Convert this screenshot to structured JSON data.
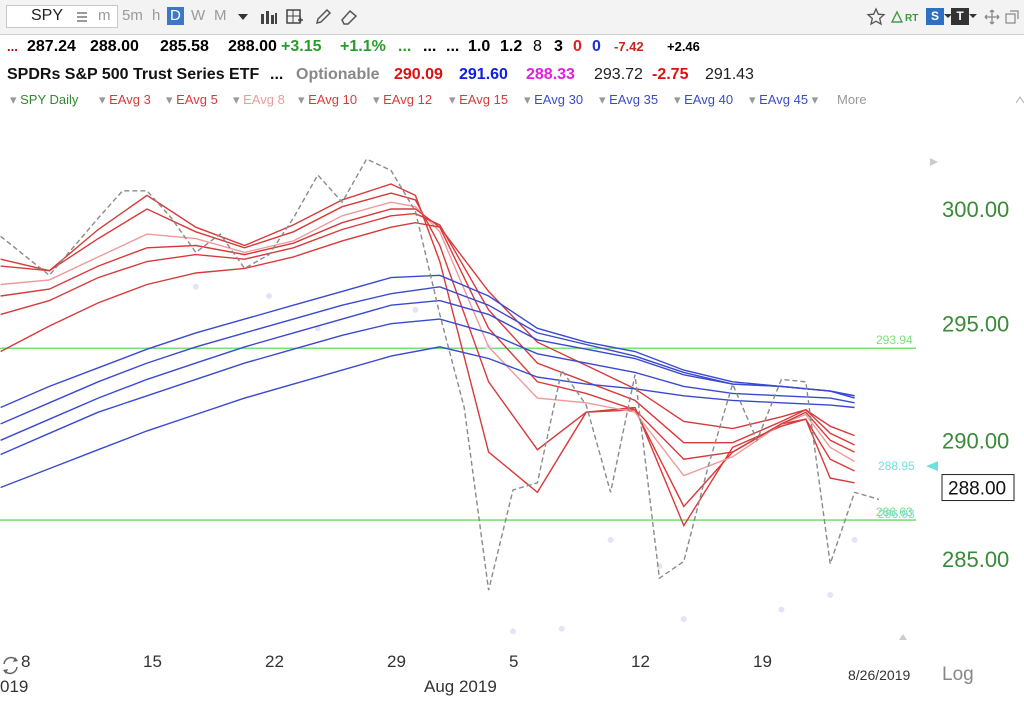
{
  "toolbar": {
    "symbol": "SPY",
    "intervals": [
      "m",
      "5m",
      "h",
      "D",
      "W",
      "M"
    ],
    "active_interval": "D",
    "rt_label": "RT",
    "badge_s": "S",
    "badge_t": "T"
  },
  "quote_row1": {
    "items": [
      {
        "text": "...",
        "color": "#c00000"
      },
      {
        "text": "287.24",
        "color": "#000000"
      },
      {
        "text": "288.00",
        "color": "#000000"
      },
      {
        "text": "285.58",
        "color": "#000000"
      },
      {
        "text": "288.00",
        "color": "#000000"
      },
      {
        "text": "+3.15",
        "color": "#2a9a2a"
      },
      {
        "text": "+1.1%",
        "color": "#2a9a2a"
      },
      {
        "text": "...",
        "color": "#2a9a2a"
      },
      {
        "text": "...",
        "color": "#000000"
      },
      {
        "text": "...",
        "color": "#000000"
      },
      {
        "text": "1.0",
        "color": "#000000"
      },
      {
        "text": "1.2",
        "color": "#000000"
      },
      {
        "text": "8",
        "color": "#000000"
      },
      {
        "text": "3",
        "color": "#000000"
      },
      {
        "text": "0",
        "color": "#e02020"
      },
      {
        "text": "0",
        "color": "#2030d0"
      },
      {
        "text": "-7.42",
        "color": "#d02020"
      },
      {
        "text": "+2.46",
        "color": "#000000"
      }
    ]
  },
  "quote_row2": {
    "name": "SPDRs S&P 500 Trust Series ETF",
    "dots": "...",
    "optionable": "Optionable",
    "values": [
      {
        "text": "290.09",
        "color": "#e01010"
      },
      {
        "text": "291.60",
        "color": "#1020e0"
      },
      {
        "text": "288.33",
        "color": "#e020e0"
      },
      {
        "text": "293.72",
        "color": "#222222"
      },
      {
        "text": "-2.75",
        "color": "#e01010"
      },
      {
        "text": "291.43",
        "color": "#222222"
      }
    ]
  },
  "legend": {
    "items": [
      {
        "text": "SPY Daily",
        "color": "#2e8b2e"
      },
      {
        "text": "EAvg 3",
        "color": "#d83a3a"
      },
      {
        "text": "EAvg 5",
        "color": "#d83a3a"
      },
      {
        "text": "EAvg 8",
        "color": "#ef9a9a"
      },
      {
        "text": "EAvg 10",
        "color": "#d83a3a"
      },
      {
        "text": "EAvg 12",
        "color": "#d83a3a"
      },
      {
        "text": "EAvg 15",
        "color": "#d83a3a"
      },
      {
        "text": "EAvg 30",
        "color": "#3a4ad0"
      },
      {
        "text": "EAvg 35",
        "color": "#3a4ad0"
      },
      {
        "text": "EAvg 40",
        "color": "#3a4ad0"
      },
      {
        "text": "EAvg 45",
        "color": "#3a4ad0"
      }
    ],
    "more": "More"
  },
  "chart_data": {
    "type": "line",
    "y_scale": "log",
    "ylim": [
      282,
      304
    ],
    "y_ticks": [
      {
        "value": 300,
        "label": "300.00"
      },
      {
        "value": 295,
        "label": "295.00"
      },
      {
        "value": 290,
        "label": "290.00"
      },
      {
        "value": 285,
        "label": "285.00"
      }
    ],
    "x_ticks": [
      {
        "index": 0,
        "label": "8"
      },
      {
        "index": 5,
        "label": "15"
      },
      {
        "index": 10,
        "label": "22"
      },
      {
        "index": 15,
        "label": "29"
      },
      {
        "index": 20,
        "label": "5"
      },
      {
        "index": 25,
        "label": "12"
      },
      {
        "index": 30,
        "label": "19"
      }
    ],
    "x_labels_below": [
      {
        "index": 0,
        "label": "019"
      },
      {
        "index": 18,
        "label": "Aug 2019"
      }
    ],
    "date_readout": "8/26/2019",
    "scale_label": "Log",
    "last_price_label": "288.00",
    "h_lines": [
      {
        "value": 293.94,
        "label": "293.94",
        "color": "#7be07b"
      },
      {
        "value": 286.63,
        "label": "286.63",
        "color": "#7be07b"
      }
    ],
    "right_markers": [
      {
        "value": 288.95,
        "label": "288.95",
        "color": "#6fe0e0"
      },
      {
        "value": 286.93,
        "label": "286.93",
        "color": "#6fe0e0"
      }
    ],
    "price_line": {
      "color": "#8a8a8a",
      "x": [
        -1,
        1,
        3,
        4,
        5,
        6,
        7,
        8,
        9,
        10,
        11,
        12,
        13,
        14,
        15,
        16,
        17,
        18,
        19,
        20,
        21,
        22,
        23,
        24,
        25,
        26,
        27,
        28,
        29,
        30,
        31,
        32,
        33,
        34,
        35
      ],
      "values": [
        298.8,
        297.1,
        299.6,
        300.8,
        300.8,
        299.6,
        298.1,
        298.9,
        297.4,
        298.0,
        299.6,
        301.5,
        300.3,
        302.2,
        301.7,
        299.9,
        295.4,
        291.4,
        283.7,
        287.9,
        288.2,
        293.0,
        291.5,
        287.8,
        292.8,
        284.2,
        284.9,
        288.9,
        292.4,
        290.0,
        292.6,
        292.5,
        284.8,
        287.8,
        287.5
      ]
    },
    "series": [
      {
        "color": "#d83a3a",
        "x": [
          -1,
          1,
          3,
          5,
          7,
          9,
          11,
          13,
          15,
          16,
          17,
          19,
          21,
          23,
          25,
          27,
          29,
          31,
          32,
          33,
          34
        ],
        "values": [
          297.8,
          297.3,
          299.1,
          300.6,
          299.2,
          298.4,
          299.3,
          300.4,
          301.1,
          300.6,
          297.7,
          289.5,
          287.8,
          291.2,
          291.4,
          286.4,
          289.7,
          290.6,
          290.9,
          288.4,
          288.2
        ]
      },
      {
        "color": "#d83a3a",
        "x": [
          -1,
          1,
          3,
          5,
          7,
          9,
          11,
          13,
          15,
          16,
          17,
          19,
          21,
          23,
          25,
          27,
          29,
          31,
          32,
          33,
          34
        ],
        "values": [
          297.5,
          297.3,
          298.7,
          300.0,
          299.0,
          298.3,
          299.0,
          300.1,
          300.7,
          300.4,
          298.4,
          292.5,
          289.6,
          291.2,
          291.3,
          287.2,
          289.5,
          290.7,
          290.9,
          289.2,
          288.7
        ]
      },
      {
        "color": "#ef9a9a",
        "x": [
          -1,
          1,
          3,
          5,
          7,
          9,
          11,
          13,
          15,
          16,
          17,
          19,
          21,
          23,
          25,
          27,
          29,
          31,
          32,
          33,
          34
        ],
        "values": [
          296.7,
          296.9,
          297.9,
          298.9,
          298.7,
          298.1,
          298.6,
          299.7,
          300.3,
          300.1,
          299.0,
          294.0,
          291.8,
          291.6,
          291.2,
          288.5,
          289.3,
          290.7,
          291.1,
          289.7,
          289.1
        ]
      },
      {
        "color": "#d83a3a",
        "x": [
          -1,
          1,
          3,
          5,
          7,
          9,
          11,
          13,
          15,
          16,
          17,
          19,
          21,
          23,
          25,
          27,
          29,
          31,
          32,
          33,
          34
        ],
        "values": [
          296.2,
          296.5,
          297.5,
          298.3,
          298.4,
          298.0,
          298.5,
          299.4,
          300.0,
          300.0,
          299.2,
          294.8,
          292.5,
          292.0,
          291.3,
          289.2,
          289.5,
          290.7,
          291.2,
          290.0,
          289.5
        ]
      },
      {
        "color": "#d83a3a",
        "x": [
          -1,
          1,
          3,
          5,
          7,
          9,
          11,
          13,
          15,
          16,
          17,
          19,
          21,
          23,
          25,
          27,
          29,
          31,
          32,
          33,
          34
        ],
        "values": [
          295.4,
          296.0,
          297.0,
          297.7,
          298.0,
          297.8,
          298.3,
          299.1,
          299.7,
          299.8,
          299.3,
          295.6,
          293.3,
          292.5,
          291.7,
          289.9,
          289.9,
          290.8,
          291.3,
          290.3,
          289.8
        ]
      },
      {
        "color": "#d83a3a",
        "x": [
          -1,
          1,
          3,
          5,
          7,
          9,
          11,
          13,
          15,
          16,
          17,
          19,
          21,
          23,
          25,
          27,
          29,
          31,
          32,
          33,
          34
        ],
        "values": [
          293.8,
          294.9,
          295.9,
          296.7,
          297.2,
          297.4,
          297.9,
          298.6,
          299.2,
          299.4,
          299.2,
          296.4,
          294.2,
          293.2,
          292.2,
          290.8,
          290.5,
          291.0,
          291.3,
          290.6,
          290.2
        ]
      },
      {
        "color": "#3a4ad0",
        "x": [
          -1,
          1,
          3,
          5,
          7,
          9,
          11,
          13,
          15,
          17,
          19,
          21,
          23,
          25,
          27,
          29,
          31,
          33,
          34
        ],
        "values": [
          291.4,
          292.3,
          293.1,
          293.9,
          294.6,
          295.2,
          295.8,
          296.4,
          297.0,
          297.1,
          296.2,
          294.8,
          294.2,
          293.8,
          293.0,
          292.5,
          292.3,
          292.1,
          291.9
        ]
      },
      {
        "color": "#3a4ad0",
        "x": [
          -1,
          1,
          3,
          5,
          7,
          9,
          11,
          13,
          15,
          17,
          19,
          21,
          23,
          25,
          27,
          29,
          31,
          33,
          34
        ],
        "values": [
          290.7,
          291.6,
          292.5,
          293.3,
          294.0,
          294.6,
          295.2,
          295.8,
          296.3,
          296.6,
          295.8,
          294.6,
          294.1,
          293.6,
          292.9,
          292.4,
          292.3,
          292.1,
          291.9
        ]
      },
      {
        "color": "#3a4ad0",
        "x": [
          -1,
          1,
          3,
          5,
          7,
          9,
          11,
          13,
          15,
          17,
          19,
          21,
          23,
          25,
          27,
          29,
          31,
          33,
          34
        ],
        "values": [
          290.0,
          290.9,
          291.8,
          292.6,
          293.3,
          294.0,
          294.6,
          295.2,
          295.8,
          296.0,
          295.4,
          294.3,
          293.9,
          293.5,
          292.8,
          292.4,
          292.3,
          292.1,
          291.8
        ]
      },
      {
        "color": "#3a4ad0",
        "x": [
          -1,
          1,
          3,
          5,
          7,
          9,
          11,
          13,
          15,
          17,
          19,
          21,
          23,
          25,
          27,
          29,
          31,
          33,
          34
        ],
        "values": [
          289.4,
          290.3,
          291.2,
          291.9,
          292.6,
          293.3,
          293.9,
          294.5,
          295.0,
          295.2,
          294.6,
          293.7,
          293.3,
          292.9,
          292.3,
          292.0,
          291.9,
          291.8,
          291.6
        ]
      },
      {
        "color": "#3a4ad0",
        "x": [
          -1,
          1,
          3,
          5,
          7,
          9,
          11,
          13,
          15,
          17,
          19,
          21,
          23,
          25,
          27,
          29,
          31,
          33,
          34
        ],
        "values": [
          288.0,
          288.8,
          289.6,
          290.4,
          291.1,
          291.8,
          292.4,
          293.0,
          293.6,
          294.0,
          293.5,
          292.7,
          292.4,
          292.2,
          291.9,
          291.7,
          291.6,
          291.5,
          291.4
        ]
      }
    ],
    "faint_points": {
      "color": "#e4e4f6",
      "x": [
        7,
        10,
        12,
        16,
        19,
        20,
        22,
        24,
        26,
        27,
        31,
        33,
        34
      ],
      "values": [
        296.6,
        296.2,
        294.8,
        295.6,
        294.0,
        282.0,
        282.1,
        285.8,
        284.7,
        282.5,
        282.9,
        283.5,
        285.8
      ]
    }
  }
}
